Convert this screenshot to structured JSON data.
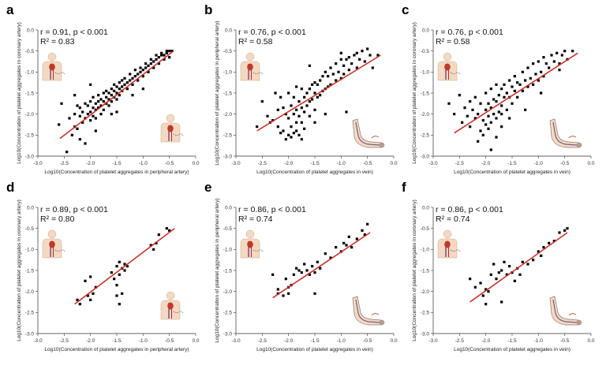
{
  "figure": {
    "panels": [
      {
        "id": "a",
        "letter": "a",
        "stat": "r = 0.91, p < 0.001",
        "r2_label": "R² = 0.83",
        "xlabel": "Log10(Concentration of platelet aggregates in peripheral artery)",
        "ylabel": "Log10(Concentration of platelet aggregates in coronary artery)",
        "icon_top": "torso-heart-icon",
        "icon_bottom": "torso-body-icon"
      },
      {
        "id": "b",
        "letter": "b",
        "stat": "r = 0.76, p < 0.001",
        "r2_label": "R² = 0.58",
        "xlabel": "Log10(Concentration of platelet aggregates in vein)",
        "ylabel": "Log10(Concentration of platelet aggregates in peripheral artery)",
        "icon_top": "torso-heart-icon",
        "icon_bottom": "arm-vein-icon"
      },
      {
        "id": "c",
        "letter": "c",
        "stat": "r = 0.76, p < 0.001",
        "r2_label": "R² = 0.58",
        "xlabel": "Log10(Concentration of platelet aggregates in vein)",
        "ylabel": "Log10(Concentration of platelet aggregates in coronary artery)",
        "icon_top": "torso-heart-icon",
        "icon_bottom": "arm-vein-icon"
      },
      {
        "id": "d",
        "letter": "d",
        "stat": "r = 0.89, p < 0.001",
        "r2_label": "R² = 0.80",
        "xlabel": "Log10(Concentration of platelet aggregates in peripheral artery)",
        "ylabel": "Log10(Concentration of platelet aggregates in coronary artery)",
        "icon_top": "torso-heart-icon",
        "icon_bottom": "torso-body-icon"
      },
      {
        "id": "e",
        "letter": "e",
        "stat": "r = 0.86, p < 0.001",
        "r2_label": "R² = 0.74",
        "xlabel": "Log10(Concentration of platelet aggregates in vein)",
        "ylabel": "Log10(Concentration of platelet aggregates in peripheral artery)",
        "icon_top": "torso-heart-icon",
        "icon_bottom": "arm-vein-icon"
      },
      {
        "id": "f",
        "letter": "f",
        "stat": "r = 0.86, p < 0.001",
        "r2_label": "R² = 0.74",
        "xlabel": "Log10(Concentration of platelet aggregates in vein)",
        "ylabel": "Log10(Concentration of platelet aggregates in coronary artery)",
        "icon_top": "torso-heart-icon",
        "icon_bottom": "arm-vein-icon"
      }
    ]
  },
  "chart_data": [
    {
      "type": "scatter",
      "panel": "a",
      "title": "",
      "xlabel": "Log10(Concentration of platelet aggregates in peripheral artery)",
      "ylabel": "Log10(Concentration of platelet aggregates in coronary artery)",
      "xlim": [
        -3.0,
        0.0
      ],
      "ylim": [
        -3.0,
        0.0
      ],
      "xticks": [
        "-3.0",
        "-2.5",
        "-2.0",
        "-1.5",
        "-1.0",
        "-0.5",
        "0.0"
      ],
      "yticks": [
        "-3.0",
        "-2.5",
        "-2.0",
        "-1.5",
        "-1.0",
        "-0.5",
        "0.0"
      ],
      "annotations": [
        "r = 0.91, p < 0.001",
        "R² = 0.83"
      ],
      "fit_line": {
        "x": [
          -2.58,
          -0.42
        ],
        "y": [
          -2.58,
          -0.5
        ]
      },
      "x": [
        -2.6,
        -2.55,
        -2.45,
        -2.4,
        -2.35,
        -2.3,
        -2.3,
        -2.25,
        -2.25,
        -2.2,
        -2.2,
        -2.15,
        -2.15,
        -2.1,
        -2.1,
        -2.1,
        -2.05,
        -2.05,
        -2.0,
        -2.0,
        -2.0,
        -1.95,
        -1.95,
        -1.95,
        -1.9,
        -1.9,
        -1.9,
        -1.85,
        -1.85,
        -1.85,
        -1.8,
        -1.8,
        -1.8,
        -1.75,
        -1.75,
        -1.75,
        -1.7,
        -1.7,
        -1.7,
        -1.65,
        -1.65,
        -1.65,
        -1.6,
        -1.6,
        -1.6,
        -1.55,
        -1.55,
        -1.55,
        -1.5,
        -1.5,
        -1.5,
        -1.45,
        -1.45,
        -1.45,
        -1.4,
        -1.4,
        -1.4,
        -1.35,
        -1.35,
        -1.3,
        -1.3,
        -1.25,
        -1.25,
        -1.2,
        -1.2,
        -1.15,
        -1.15,
        -1.1,
        -1.1,
        -1.05,
        -1.05,
        -1.0,
        -1.0,
        -0.95,
        -0.95,
        -0.9,
        -0.9,
        -0.85,
        -0.85,
        -0.8,
        -0.8,
        -0.75,
        -0.75,
        -0.7,
        -0.7,
        -0.65,
        -0.65,
        -0.6,
        -0.6,
        -0.55,
        -0.55,
        -0.5,
        -0.5,
        -0.45,
        -2.3,
        -2.0,
        -1.6,
        -1.9,
        -1.2,
        -1.5,
        -2.2,
        -1.0
      ],
      "y": [
        -2.25,
        -1.75,
        -2.9,
        -2.1,
        -2.5,
        -2.0,
        -2.3,
        -1.8,
        -2.35,
        -2.05,
        -1.85,
        -2.2,
        -1.95,
        -2.1,
        -1.75,
        -2.7,
        -2.0,
        -1.8,
        -2.15,
        -1.7,
        -1.95,
        -1.85,
        -2.05,
        -1.6,
        -1.9,
        -1.75,
        -2.1,
        -1.7,
        -1.85,
        -1.55,
        -1.8,
        -1.65,
        -2.0,
        -1.7,
        -1.5,
        -1.9,
        -1.6,
        -1.75,
        -1.45,
        -1.5,
        -1.65,
        -1.8,
        -1.55,
        -1.4,
        -1.7,
        -1.45,
        -1.6,
        -1.3,
        -1.5,
        -1.35,
        -1.65,
        -1.4,
        -1.25,
        -1.55,
        -1.35,
        -1.2,
        -1.45,
        -1.3,
        -1.15,
        -1.25,
        -1.4,
        -1.2,
        -1.05,
        -1.15,
        -1.3,
        -1.1,
        -0.95,
        -1.05,
        -1.2,
        -1.0,
        -0.9,
        -0.95,
        -1.1,
        -0.9,
        -0.8,
        -0.85,
        -1.0,
        -0.8,
        -0.7,
        -0.75,
        -0.9,
        -0.7,
        -0.6,
        -0.65,
        -0.8,
        -0.6,
        -0.55,
        -0.6,
        -0.7,
        -0.55,
        -0.5,
        -0.5,
        -0.65,
        -0.5,
        -1.55,
        -1.3,
        -2.0,
        -2.4,
        -1.55,
        -1.95,
        -2.6,
        -1.4
      ]
    },
    {
      "type": "scatter",
      "panel": "b",
      "title": "",
      "xlabel": "Log10(Concentration of platelet aggregates in vein)",
      "ylabel": "Log10(Concentration of platelet aggregates in peripheral artery)",
      "xlim": [
        -3.0,
        0.0
      ],
      "ylim": [
        -3.0,
        0.0
      ],
      "xticks": [
        "-3.0",
        "-2.5",
        "-2.0",
        "-1.5",
        "-1.0",
        "-0.5",
        "0.0"
      ],
      "yticks": [
        "-3.0",
        "-2.5",
        "-2.0",
        "-1.5",
        "-1.0",
        "-0.5",
        "0.0"
      ],
      "annotations": [
        "r = 0.76, p < 0.001",
        "R² = 0.58"
      ],
      "fit_line": {
        "x": [
          -2.6,
          -0.25
        ],
        "y": [
          -2.4,
          -0.6
        ]
      },
      "x": [
        -2.6,
        -2.5,
        -2.4,
        -2.35,
        -2.3,
        -2.25,
        -2.2,
        -2.2,
        -2.15,
        -2.1,
        -2.1,
        -2.05,
        -2.0,
        -2.0,
        -2.0,
        -1.95,
        -1.95,
        -1.9,
        -1.9,
        -1.9,
        -1.85,
        -1.85,
        -1.85,
        -1.8,
        -1.8,
        -1.8,
        -1.75,
        -1.75,
        -1.75,
        -1.7,
        -1.7,
        -1.7,
        -1.65,
        -1.65,
        -1.6,
        -1.6,
        -1.6,
        -1.55,
        -1.55,
        -1.5,
        -1.5,
        -1.5,
        -1.45,
        -1.45,
        -1.4,
        -1.4,
        -1.35,
        -1.35,
        -1.3,
        -1.3,
        -1.25,
        -1.25,
        -1.2,
        -1.2,
        -1.15,
        -1.1,
        -1.1,
        -1.05,
        -1.0,
        -1.0,
        -0.95,
        -0.95,
        -0.9,
        -0.85,
        -0.85,
        -0.8,
        -0.75,
        -0.7,
        -0.7,
        -0.65,
        -0.6,
        -0.55,
        -0.5,
        -0.45,
        -0.4,
        -0.3,
        -2.05,
        -1.95,
        -1.85,
        -1.75,
        -2.15,
        -1.5,
        -1.3,
        -0.9,
        -1.6,
        -1.0
      ],
      "y": [
        -2.3,
        -1.7,
        -2.05,
        -2.2,
        -2.15,
        -1.5,
        -1.9,
        -2.3,
        -1.6,
        -1.85,
        -2.4,
        -2.0,
        -1.5,
        -2.1,
        -2.5,
        -1.8,
        -2.3,
        -1.6,
        -2.0,
        -2.45,
        -1.35,
        -1.9,
        -2.2,
        -1.7,
        -2.05,
        -2.5,
        -1.4,
        -1.85,
        -2.2,
        -1.6,
        -1.95,
        -2.35,
        -1.5,
        -1.8,
        -1.4,
        -1.7,
        -2.05,
        -1.3,
        -1.65,
        -1.25,
        -1.5,
        -1.9,
        -1.3,
        -1.6,
        -1.2,
        -1.55,
        -1.1,
        -1.45,
        -1.0,
        -1.4,
        -1.1,
        -1.35,
        -0.9,
        -1.3,
        -1.05,
        -0.8,
        -1.2,
        -1.0,
        -0.7,
        -1.15,
        -0.85,
        -1.05,
        -0.7,
        -0.65,
        -0.95,
        -0.8,
        -0.6,
        -0.55,
        -0.9,
        -0.7,
        -0.5,
        -0.75,
        -0.45,
        -0.6,
        -0.9,
        -0.6,
        -2.6,
        -2.55,
        -2.4,
        -2.6,
        -2.45,
        -2.2,
        -2.0,
        -1.95,
        -0.85,
        -0.55
      ]
    },
    {
      "type": "scatter",
      "panel": "c",
      "title": "",
      "xlabel": "Log10(Concentration of platelet aggregates in vein)",
      "ylabel": "Log10(Concentration of platelet aggregates in coronary artery)",
      "xlim": [
        -3.0,
        0.0
      ],
      "ylim": [
        -3.0,
        0.0
      ],
      "xticks": [
        "-3.0",
        "-2.5",
        "-2.0",
        "-1.5",
        "-1.0",
        "-0.5",
        "0.0"
      ],
      "yticks": [
        "-3.0",
        "-2.5",
        "-2.0",
        "-1.5",
        "-1.0",
        "-0.5",
        "0.0"
      ],
      "annotations": [
        "r = 0.76, p < 0.001",
        "R² = 0.58"
      ],
      "fit_line": {
        "x": [
          -2.6,
          -0.25
        ],
        "y": [
          -2.45,
          -0.55
        ]
      },
      "x": [
        -2.7,
        -2.6,
        -2.5,
        -2.45,
        -2.4,
        -2.35,
        -2.3,
        -2.3,
        -2.25,
        -2.2,
        -2.2,
        -2.15,
        -2.1,
        -2.1,
        -2.05,
        -2.0,
        -2.0,
        -2.0,
        -1.95,
        -1.95,
        -1.9,
        -1.9,
        -1.9,
        -1.85,
        -1.85,
        -1.8,
        -1.8,
        -1.8,
        -1.75,
        -1.75,
        -1.7,
        -1.7,
        -1.7,
        -1.65,
        -1.65,
        -1.6,
        -1.6,
        -1.55,
        -1.55,
        -1.5,
        -1.5,
        -1.45,
        -1.45,
        -1.4,
        -1.4,
        -1.35,
        -1.3,
        -1.3,
        -1.25,
        -1.2,
        -1.2,
        -1.15,
        -1.1,
        -1.1,
        -1.05,
        -1.0,
        -1.0,
        -0.95,
        -0.9,
        -0.9,
        -0.85,
        -0.8,
        -0.75,
        -0.7,
        -0.65,
        -0.6,
        -0.55,
        -0.5,
        -0.45,
        -0.35,
        -2.15,
        -2.05,
        -1.9,
        -1.8,
        -1.95,
        -1.7,
        -1.55,
        -1.25,
        -0.95,
        -0.6
      ],
      "y": [
        -1.75,
        -2.0,
        -1.55,
        -2.2,
        -1.85,
        -2.05,
        -1.7,
        -2.3,
        -1.9,
        -1.6,
        -2.1,
        -2.0,
        -1.75,
        -2.4,
        -2.15,
        -1.5,
        -1.9,
        -2.25,
        -1.75,
        -2.05,
        -1.4,
        -1.85,
        -2.2,
        -1.65,
        -2.0,
        -1.3,
        -1.7,
        -2.1,
        -1.55,
        -1.95,
        -1.4,
        -1.8,
        -2.0,
        -1.3,
        -1.6,
        -1.5,
        -1.9,
        -1.2,
        -1.6,
        -1.35,
        -1.75,
        -1.1,
        -1.45,
        -1.25,
        -1.6,
        -1.3,
        -1.0,
        -1.45,
        -1.2,
        -0.9,
        -1.35,
        -1.15,
        -0.8,
        -1.3,
        -1.05,
        -0.75,
        -1.2,
        -1.0,
        -0.65,
        -1.1,
        -0.8,
        -0.9,
        -0.6,
        -0.75,
        -0.55,
        -0.8,
        -0.6,
        -0.5,
        -0.7,
        -0.5,
        -2.65,
        -2.5,
        -2.85,
        -2.55,
        -2.35,
        -2.3,
        -2.1,
        -1.9,
        -1.5,
        -0.95
      ]
    },
    {
      "type": "scatter",
      "panel": "d",
      "title": "",
      "xlabel": "Log10(Concentration of platelet aggregates in peripheral artery)",
      "ylabel": "Log10(Concentration of platelet aggregates in coronary artery)",
      "xlim": [
        -3.0,
        0.0
      ],
      "ylim": [
        -3.0,
        0.0
      ],
      "xticks": [
        "-3.0",
        "-2.5",
        "-2.0",
        "-1.5",
        "-1.0",
        "-0.5",
        "0.0"
      ],
      "yticks": [
        "-3.0",
        "-2.5",
        "-2.0",
        "-1.5",
        "-1.0",
        "-0.5",
        "0.0"
      ],
      "annotations": [
        "r = 0.89, p < 0.001",
        "R² = 0.80"
      ],
      "fit_line": {
        "x": [
          -2.3,
          -0.4
        ],
        "y": [
          -2.3,
          -0.5
        ]
      },
      "x": [
        -2.25,
        -2.2,
        -2.1,
        -2.05,
        -2.0,
        -1.95,
        -1.9,
        -1.6,
        -1.55,
        -1.5,
        -1.5,
        -1.45,
        -1.45,
        -1.4,
        -1.4,
        -1.35,
        -1.35,
        -1.3,
        -0.85,
        -0.8,
        -0.75,
        -0.7,
        -0.55,
        -0.5,
        -2.0,
        -1.5,
        -1.45
      ],
      "y": [
        -2.2,
        -2.3,
        -1.75,
        -2.1,
        -1.65,
        -2.05,
        -1.9,
        -1.55,
        -1.7,
        -1.4,
        -1.85,
        -1.3,
        -1.6,
        -1.45,
        -2.05,
        -1.35,
        -1.5,
        -1.4,
        -0.9,
        -1.0,
        -0.85,
        -0.65,
        -0.5,
        -0.55,
        -2.2,
        -2.1,
        -2.3
      ]
    },
    {
      "type": "scatter",
      "panel": "e",
      "title": "",
      "xlabel": "Log10(Concentration of platelet aggregates in vein)",
      "ylabel": "Log10(Concentration of platelet aggregates in peripheral artery)",
      "xlim": [
        -3.0,
        0.0
      ],
      "ylim": [
        -3.0,
        0.0
      ],
      "xticks": [
        "-3.0",
        "-2.5",
        "-2.0",
        "-1.5",
        "-1.0",
        "-0.5",
        "0.0"
      ],
      "yticks": [
        "-3.0",
        "-2.5",
        "-2.0",
        "-1.5",
        "-1.0",
        "-0.5",
        "0.0"
      ],
      "annotations": [
        "r = 0.86, p < 0.001",
        "R² = 0.74"
      ],
      "fit_line": {
        "x": [
          -2.3,
          -0.45
        ],
        "y": [
          -2.15,
          -0.6
        ]
      },
      "x": [
        -2.3,
        -2.2,
        -2.1,
        -2.05,
        -2.0,
        -2.0,
        -1.95,
        -1.9,
        -1.85,
        -1.8,
        -1.75,
        -1.7,
        -1.65,
        -1.6,
        -1.55,
        -1.5,
        -1.45,
        -1.4,
        -1.3,
        -1.2,
        -1.1,
        -1.0,
        -0.95,
        -0.9,
        -0.85,
        -0.8,
        -0.7,
        -0.6,
        -0.55,
        -0.5,
        -2.2,
        -1.5
      ],
      "y": [
        -1.6,
        -1.95,
        -2.1,
        -1.7,
        -1.9,
        -2.05,
        -1.85,
        -1.6,
        -1.45,
        -1.5,
        -1.55,
        -1.35,
        -1.5,
        -1.6,
        -1.4,
        -1.55,
        -1.3,
        -1.45,
        -1.1,
        -1.2,
        -0.95,
        -1.05,
        -0.85,
        -0.9,
        -0.7,
        -0.95,
        -0.75,
        -0.55,
        -0.65,
        -0.4,
        -2.05,
        -2.05
      ]
    },
    {
      "type": "scatter",
      "panel": "f",
      "title": "",
      "xlabel": "Log10(Concentration of platelet aggregates in vein)",
      "ylabel": "Log10(Concentration of platelet aggregates in coronary artery)",
      "xlim": [
        -3.0,
        0.0
      ],
      "ylim": [
        -3.0,
        0.0
      ],
      "xticks": [
        "-3.0",
        "-2.5",
        "-2.0",
        "-1.5",
        "-1.0",
        "-0.5",
        "0.0"
      ],
      "yticks": [
        "-3.0",
        "-2.5",
        "-2.0",
        "-1.5",
        "-1.0",
        "-0.5",
        "0.0"
      ],
      "annotations": [
        "r = 0.86, p < 0.001",
        "R² = 0.74"
      ],
      "fit_line": {
        "x": [
          -2.3,
          -0.45
        ],
        "y": [
          -2.25,
          -0.6
        ]
      },
      "x": [
        -2.3,
        -2.2,
        -2.1,
        -2.05,
        -2.0,
        -1.95,
        -1.9,
        -1.85,
        -1.8,
        -1.75,
        -1.7,
        -1.65,
        -1.6,
        -1.55,
        -1.5,
        -1.45,
        -1.4,
        -1.35,
        -1.3,
        -1.2,
        -1.1,
        -1.0,
        -0.95,
        -0.9,
        -0.8,
        -0.7,
        -0.6,
        -0.5,
        -0.45,
        -2.0,
        -1.7
      ],
      "y": [
        -1.7,
        -1.9,
        -1.8,
        -2.1,
        -1.95,
        -2.0,
        -1.6,
        -1.35,
        -1.7,
        -1.55,
        -1.5,
        -1.3,
        -1.6,
        -1.4,
        -1.55,
        -1.75,
        -1.45,
        -1.6,
        -1.3,
        -1.35,
        -1.25,
        -1.05,
        -1.15,
        -0.95,
        -0.85,
        -0.8,
        -0.6,
        -0.55,
        -0.5,
        -2.3,
        -2.25
      ]
    }
  ]
}
